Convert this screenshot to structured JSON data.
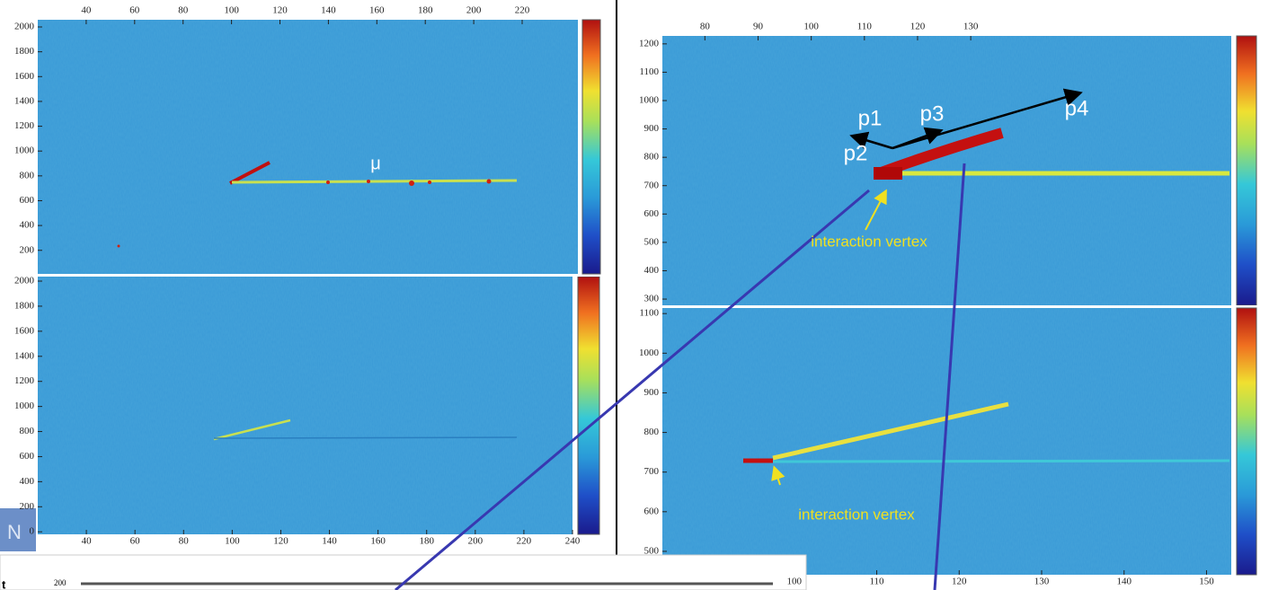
{
  "chart_data": [
    {
      "type": "heatmap",
      "xlim": [
        20,
        243
      ],
      "xticks": [
        40,
        60,
        80,
        100,
        120,
        140,
        160,
        180,
        200,
        220
      ],
      "ylim": [
        10,
        2058
      ],
      "yticks": [
        200,
        400,
        600,
        800,
        1000,
        1200,
        1400,
        1600,
        1800,
        2000
      ],
      "annotations": [
        "μ"
      ]
    },
    {
      "type": "heatmap",
      "xlim": [
        20,
        240
      ],
      "xticks": [
        40,
        60,
        80,
        100,
        120,
        140,
        160,
        180,
        200,
        220,
        240
      ],
      "ylim": [
        -20,
        2036
      ],
      "yticks": [
        0,
        200,
        400,
        600,
        800,
        1000,
        1200,
        1400,
        1600,
        1800,
        2000
      ],
      "annotations": []
    },
    {
      "type": "heatmap",
      "xlim": [
        72,
        179
      ],
      "xticks": [
        80,
        90,
        100,
        110,
        120,
        130
      ],
      "ylim": [
        278,
        1228
      ],
      "yticks": [
        300,
        400,
        500,
        600,
        700,
        800,
        900,
        1000,
        1100,
        1200
      ],
      "annotations": [
        "p1",
        "p2",
        "p3",
        "p4",
        "interaction vertex"
      ]
    },
    {
      "type": "heatmap",
      "xlim": [
        84,
        153
      ],
      "xticks": [
        100,
        110,
        120,
        130,
        140,
        150
      ],
      "ylim": [
        441,
        1114
      ],
      "yticks": [
        500,
        600,
        700,
        800,
        900,
        1000,
        1100
      ],
      "annotations": [
        "interaction vertex"
      ]
    }
  ],
  "fragments": [
    "200",
    "N",
    "t"
  ]
}
